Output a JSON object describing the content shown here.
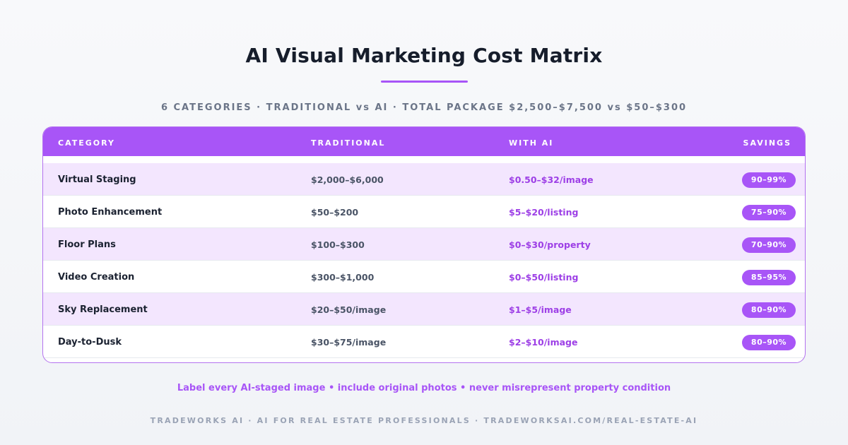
{
  "title": "AI Visual Marketing Cost Matrix",
  "subtitle": "6 CATEGORIES · TRADITIONAL vs AI · TOTAL PACKAGE $2,500–$7,500 vs $50–$300",
  "table": {
    "headers": {
      "category": "CATEGORY",
      "traditional": "TRADITIONAL",
      "with_ai": "WITH AI",
      "savings": "SAVINGS"
    },
    "rows": [
      {
        "category": "Virtual Staging",
        "traditional": "$2,000–$6,000",
        "with_ai": "$0.50–$32/image",
        "savings": "90–99%"
      },
      {
        "category": "Photo Enhancement",
        "traditional": "$50–$200",
        "with_ai": "$5–$20/listing",
        "savings": "75–90%"
      },
      {
        "category": "Floor Plans",
        "traditional": "$100–$300",
        "with_ai": "$0–$30/property",
        "savings": "70–90%"
      },
      {
        "category": "Video Creation",
        "traditional": "$300–$1,000",
        "with_ai": "$0–$50/listing",
        "savings": "85–95%"
      },
      {
        "category": "Sky Replacement",
        "traditional": "$20–$50/image",
        "with_ai": "$1–$5/image",
        "savings": "80–90%"
      },
      {
        "category": "Day-to-Dusk",
        "traditional": "$30–$75/image",
        "with_ai": "$2–$10/image",
        "savings": "80–90%"
      }
    ]
  },
  "note": "Label every AI-staged image • include original photos • never misrepresent property condition",
  "footer": "TRADEWORKS AI · AI FOR REAL ESTATE PROFESSIONALS · TRADEWORKSAI.COM/REAL-ESTATE-AI",
  "colors": {
    "accent": "#a855f7",
    "row_alt": "#f3e6fe",
    "title": "#161d2b"
  }
}
